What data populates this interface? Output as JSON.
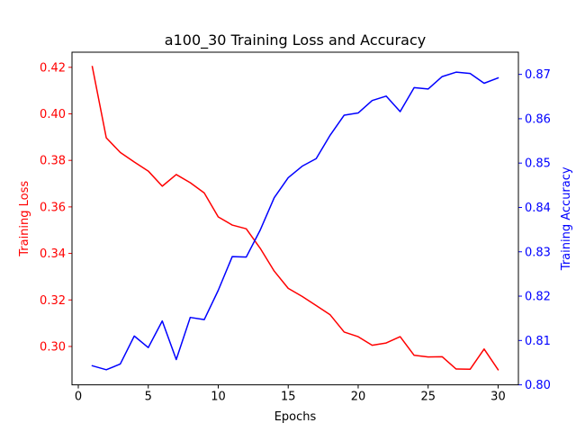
{
  "chart_data": {
    "type": "line",
    "title": "a100_30 Training Loss and Accuracy",
    "xlabel": "Epochs",
    "ylabel_left": "Training Loss",
    "ylabel_right": "Training Accuracy",
    "xlim": [
      -0.45,
      31.45
    ],
    "ylim_left": [
      0.2835,
      0.4265
    ],
    "ylim_right": [
      0.8,
      0.875
    ],
    "x_ticks": [
      0,
      5,
      10,
      15,
      20,
      25,
      30
    ],
    "y_ticks_left": [
      "0.30",
      "0.32",
      "0.34",
      "0.36",
      "0.38",
      "0.40",
      "0.42"
    ],
    "y_ticks_right": [
      "0.80",
      "0.81",
      "0.82",
      "0.83",
      "0.84",
      "0.85",
      "0.86",
      "0.87"
    ],
    "left_axis_color": "#ff0000",
    "right_axis_color": "#0000ff",
    "grid": false,
    "x": [
      1,
      2,
      3,
      4,
      5,
      6,
      7,
      8,
      9,
      10,
      11,
      12,
      13,
      14,
      15,
      16,
      17,
      18,
      19,
      20,
      21,
      22,
      23,
      24,
      25,
      26,
      27,
      28,
      29,
      30
    ],
    "series": [
      {
        "axis": "left",
        "color": "#ff0000",
        "values": [
          0.4203,
          0.3897,
          0.3834,
          0.3793,
          0.3754,
          0.3689,
          0.3739,
          0.3704,
          0.366,
          0.3557,
          0.3522,
          0.3506,
          0.3422,
          0.3324,
          0.325,
          0.3215,
          0.3176,
          0.3136,
          0.3062,
          0.3042,
          0.3005,
          0.3015,
          0.3042,
          0.2962,
          0.2955,
          0.2956,
          0.2903,
          0.2902,
          0.2989,
          0.29
        ]
      },
      {
        "axis": "right",
        "color": "#0000ff",
        "values": [
          0.8043,
          0.8034,
          0.8047,
          0.811,
          0.8084,
          0.8144,
          0.8057,
          0.8152,
          0.8147,
          0.8213,
          0.8289,
          0.8288,
          0.8349,
          0.8422,
          0.8467,
          0.8493,
          0.851,
          0.8563,
          0.8608,
          0.8613,
          0.8641,
          0.8651,
          0.8616,
          0.867,
          0.8667,
          0.8695,
          0.8705,
          0.8702,
          0.868,
          0.8692
        ]
      }
    ]
  }
}
